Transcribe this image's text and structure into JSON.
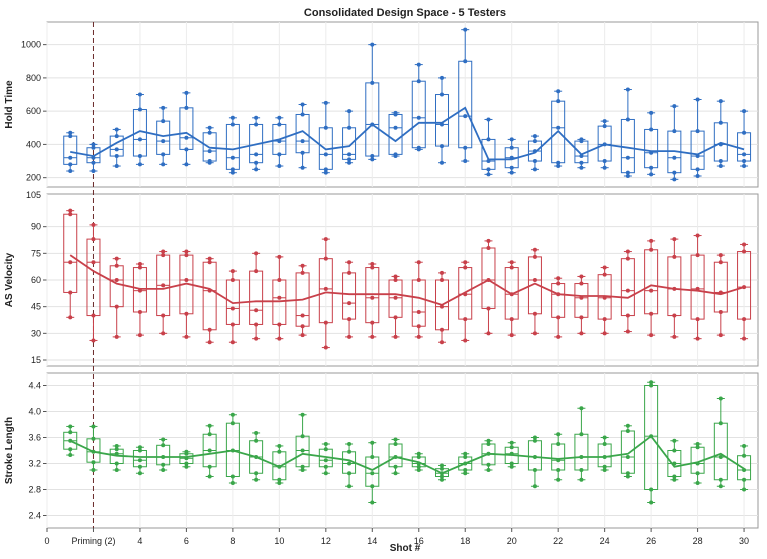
{
  "chart_data": {
    "type": "box",
    "title": "Consolidated Design Space - 5 Testers",
    "xlabel": "Shot #",
    "xlim": [
      0,
      30.6
    ],
    "x_ticks": [
      {
        "x": 0,
        "label": "0"
      },
      {
        "x": 2,
        "label": "Priming (2)"
      },
      {
        "x": 4,
        "label": "4"
      },
      {
        "x": 6,
        "label": "6"
      },
      {
        "x": 8,
        "label": "8"
      },
      {
        "x": 10,
        "label": "10"
      },
      {
        "x": 12,
        "label": "12"
      },
      {
        "x": 14,
        "label": "14"
      },
      {
        "x": 16,
        "label": "16"
      },
      {
        "x": 18,
        "label": "18"
      },
      {
        "x": 20,
        "label": "20"
      },
      {
        "x": 22,
        "label": "22"
      },
      {
        "x": 24,
        "label": "24"
      },
      {
        "x": 26,
        "label": "26"
      },
      {
        "x": 28,
        "label": "28"
      },
      {
        "x": 30,
        "label": "30"
      }
    ],
    "reference_line_x": 2,
    "shots": [
      1,
      2,
      3,
      4,
      5,
      6,
      7,
      8,
      9,
      10,
      11,
      12,
      13,
      14,
      15,
      16,
      17,
      18,
      19,
      20,
      21,
      22,
      23,
      24,
      25,
      26,
      27,
      28,
      29,
      30
    ],
    "panels": [
      {
        "ylabel": "Hold Time",
        "color": "#2f6ec2",
        "ylim": [
          180,
          1100
        ],
        "yticks": [
          200,
          400,
          600,
          800,
          1000
        ],
        "top_label": "",
        "mean": [
          355,
          330,
          410,
          480,
          450,
          470,
          380,
          370,
          400,
          430,
          480,
          370,
          390,
          520,
          420,
          530,
          530,
          620,
          310,
          310,
          350,
          480,
          340,
          400,
          380,
          360,
          360,
          340,
          410,
          370
        ],
        "boxes": [
          {
            "min": 240,
            "q1": 280,
            "med": 320,
            "q3": 450,
            "max": 470
          },
          {
            "min": 240,
            "q1": 290,
            "med": 320,
            "q3": 380,
            "max": 400
          },
          {
            "min": 270,
            "q1": 330,
            "med": 370,
            "q3": 450,
            "max": 490
          },
          {
            "min": 280,
            "q1": 330,
            "med": 430,
            "q3": 610,
            "max": 700
          },
          {
            "min": 280,
            "q1": 340,
            "med": 420,
            "q3": 540,
            "max": 620
          },
          {
            "min": 280,
            "q1": 370,
            "med": 440,
            "q3": 620,
            "max": 710
          },
          {
            "min": 290,
            "q1": 300,
            "med": 360,
            "q3": 470,
            "max": 500
          },
          {
            "min": 230,
            "q1": 250,
            "med": 320,
            "q3": 520,
            "max": 560
          },
          {
            "min": 250,
            "q1": 290,
            "med": 340,
            "q3": 520,
            "max": 560
          },
          {
            "min": 270,
            "q1": 340,
            "med": 420,
            "q3": 520,
            "max": 560
          },
          {
            "min": 260,
            "q1": 350,
            "med": 420,
            "q3": 580,
            "max": 640
          },
          {
            "min": 230,
            "q1": 250,
            "med": 340,
            "q3": 500,
            "max": 650
          },
          {
            "min": 290,
            "q1": 310,
            "med": 340,
            "q3": 500,
            "max": 600
          },
          {
            "min": 310,
            "q1": 330,
            "med": 520,
            "q3": 770,
            "max": 1000
          },
          {
            "min": 330,
            "q1": 340,
            "med": 500,
            "q3": 580,
            "max": 590
          },
          {
            "min": 370,
            "q1": 380,
            "med": 560,
            "q3": 780,
            "max": 880
          },
          {
            "min": 290,
            "q1": 390,
            "med": 520,
            "q3": 700,
            "max": 800
          },
          {
            "min": 300,
            "q1": 380,
            "med": 570,
            "q3": 900,
            "max": 1090
          },
          {
            "min": 220,
            "q1": 250,
            "med": 300,
            "q3": 430,
            "max": 550
          },
          {
            "min": 230,
            "q1": 260,
            "med": 320,
            "q3": 380,
            "max": 430
          },
          {
            "min": 250,
            "q1": 300,
            "med": 360,
            "q3": 420,
            "max": 450
          },
          {
            "min": 270,
            "q1": 290,
            "med": 500,
            "q3": 660,
            "max": 720
          },
          {
            "min": 260,
            "q1": 290,
            "med": 330,
            "q3": 420,
            "max": 430
          },
          {
            "min": 260,
            "q1": 300,
            "med": 400,
            "q3": 510,
            "max": 540
          },
          {
            "min": 210,
            "q1": 230,
            "med": 320,
            "q3": 550,
            "max": 730
          },
          {
            "min": 220,
            "q1": 260,
            "med": 350,
            "q3": 490,
            "max": 590
          },
          {
            "min": 190,
            "q1": 230,
            "med": 320,
            "q3": 480,
            "max": 630
          },
          {
            "min": 210,
            "q1": 250,
            "med": 330,
            "q3": 480,
            "max": 670
          },
          {
            "min": 270,
            "q1": 300,
            "med": 400,
            "q3": 530,
            "max": 660
          },
          {
            "min": 270,
            "q1": 300,
            "med": 340,
            "q3": 470,
            "max": 600
          }
        ]
      },
      {
        "ylabel": "AS Velocity",
        "color": "#c8404a",
        "ylim": [
          15,
          105
        ],
        "yticks": [
          15,
          30,
          45,
          60,
          75,
          90
        ],
        "top_label": "105",
        "mean": [
          74,
          65,
          58,
          55,
          55,
          58,
          55,
          47,
          48,
          48,
          49,
          53,
          52,
          52,
          52,
          50,
          46,
          53,
          60,
          52,
          58,
          52,
          51,
          51,
          50,
          57,
          55,
          54,
          52,
          56
        ],
        "boxes": [
          {
            "min": 39,
            "q1": 53,
            "med": 70,
            "q3": 97,
            "max": 99
          },
          {
            "min": 26,
            "q1": 40,
            "med": 70,
            "q3": 83,
            "max": 91
          },
          {
            "min": 28,
            "q1": 45,
            "med": 60,
            "q3": 68,
            "max": 72
          },
          {
            "min": 29,
            "q1": 42,
            "med": 54,
            "q3": 67,
            "max": 69
          },
          {
            "min": 30,
            "q1": 40,
            "med": 57,
            "q3": 74,
            "max": 76
          },
          {
            "min": 28,
            "q1": 41,
            "med": 60,
            "q3": 74,
            "max": 76
          },
          {
            "min": 25,
            "q1": 32,
            "med": 54,
            "q3": 70,
            "max": 72
          },
          {
            "min": 25,
            "q1": 35,
            "med": 44,
            "q3": 60,
            "max": 65
          },
          {
            "min": 27,
            "q1": 35,
            "med": 43,
            "q3": 65,
            "max": 75
          },
          {
            "min": 27,
            "q1": 35,
            "med": 50,
            "q3": 60,
            "max": 73
          },
          {
            "min": 29,
            "q1": 34,
            "med": 40,
            "q3": 64,
            "max": 68
          },
          {
            "min": 22,
            "q1": 36,
            "med": 55,
            "q3": 72,
            "max": 83
          },
          {
            "min": 28,
            "q1": 38,
            "med": 47,
            "q3": 64,
            "max": 70
          },
          {
            "min": 28,
            "q1": 36,
            "med": 50,
            "q3": 67,
            "max": 69
          },
          {
            "min": 28,
            "q1": 39,
            "med": 50,
            "q3": 60,
            "max": 62
          },
          {
            "min": 28,
            "q1": 34,
            "med": 42,
            "q3": 60,
            "max": 70
          },
          {
            "min": 25,
            "q1": 32,
            "med": 45,
            "q3": 60,
            "max": 64
          },
          {
            "min": 26,
            "q1": 38,
            "med": 52,
            "q3": 67,
            "max": 70
          },
          {
            "min": 30,
            "q1": 44,
            "med": 60,
            "q3": 78,
            "max": 82
          },
          {
            "min": 29,
            "q1": 38,
            "med": 52,
            "q3": 67,
            "max": 70
          },
          {
            "min": 30,
            "q1": 41,
            "med": 60,
            "q3": 73,
            "max": 77
          },
          {
            "min": 28,
            "q1": 39,
            "med": 52,
            "q3": 58,
            "max": 61
          },
          {
            "min": 30,
            "q1": 39,
            "med": 50,
            "q3": 58,
            "max": 62
          },
          {
            "min": 30,
            "q1": 38,
            "med": 50,
            "q3": 63,
            "max": 67
          },
          {
            "min": 31,
            "q1": 40,
            "med": 54,
            "q3": 72,
            "max": 76
          },
          {
            "min": 29,
            "q1": 41,
            "med": 54,
            "q3": 77,
            "max": 82
          },
          {
            "min": 28,
            "q1": 40,
            "med": 55,
            "q3": 73,
            "max": 83
          },
          {
            "min": 27,
            "q1": 38,
            "med": 55,
            "q3": 74,
            "max": 85
          },
          {
            "min": 29,
            "q1": 42,
            "med": 53,
            "q3": 70,
            "max": 74
          },
          {
            "min": 27,
            "q1": 38,
            "med": 56,
            "q3": 76,
            "max": 80
          }
        ]
      },
      {
        "ylabel": "Stroke Length",
        "color": "#3aa64a",
        "ylim": [
          2.3,
          4.5
        ],
        "yticks": [
          2.4,
          2.8,
          3.2,
          3.6,
          4.0,
          4.4
        ],
        "top_label": "",
        "mean": [
          3.55,
          3.38,
          3.32,
          3.3,
          3.3,
          3.3,
          3.35,
          3.4,
          3.3,
          3.15,
          3.35,
          3.3,
          3.25,
          3.1,
          3.3,
          3.22,
          3.05,
          3.2,
          3.35,
          3.33,
          3.3,
          3.27,
          3.3,
          3.3,
          3.35,
          3.62,
          3.15,
          3.22,
          3.35,
          3.12
        ],
        "boxes": [
          {
            "min": 3.33,
            "q1": 3.42,
            "med": 3.55,
            "q3": 3.68,
            "max": 3.77
          },
          {
            "min": 3.1,
            "q1": 3.22,
            "med": 3.38,
            "q3": 3.58,
            "max": 3.77
          },
          {
            "min": 3.1,
            "q1": 3.2,
            "med": 3.35,
            "q3": 3.42,
            "max": 3.47
          },
          {
            "min": 3.05,
            "q1": 3.15,
            "med": 3.25,
            "q3": 3.4,
            "max": 3.45
          },
          {
            "min": 3.1,
            "q1": 3.18,
            "med": 3.3,
            "q3": 3.48,
            "max": 3.57
          },
          {
            "min": 3.15,
            "q1": 3.2,
            "med": 3.28,
            "q3": 3.35,
            "max": 3.38
          },
          {
            "min": 3.0,
            "q1": 3.15,
            "med": 3.4,
            "q3": 3.65,
            "max": 3.78
          },
          {
            "min": 2.9,
            "q1": 3.0,
            "med": 3.4,
            "q3": 3.82,
            "max": 3.95
          },
          {
            "min": 2.95,
            "q1": 3.05,
            "med": 3.3,
            "q3": 3.55,
            "max": 3.67
          },
          {
            "min": 2.9,
            "q1": 2.95,
            "med": 3.15,
            "q3": 3.38,
            "max": 3.47
          },
          {
            "min": 3.1,
            "q1": 3.15,
            "med": 3.4,
            "q3": 3.62,
            "max": 3.95
          },
          {
            "min": 3.05,
            "q1": 3.15,
            "med": 3.25,
            "q3": 3.42,
            "max": 3.5
          },
          {
            "min": 2.85,
            "q1": 3.05,
            "med": 3.2,
            "q3": 3.38,
            "max": 3.5
          },
          {
            "min": 2.6,
            "q1": 2.85,
            "med": 3.05,
            "q3": 3.3,
            "max": 3.52
          },
          {
            "min": 3.05,
            "q1": 3.15,
            "med": 3.3,
            "q3": 3.5,
            "max": 3.57
          },
          {
            "min": 3.1,
            "q1": 3.15,
            "med": 3.2,
            "q3": 3.3,
            "max": 3.35
          },
          {
            "min": 2.95,
            "q1": 3.0,
            "med": 3.05,
            "q3": 3.12,
            "max": 3.17
          },
          {
            "min": 3.05,
            "q1": 3.1,
            "med": 3.2,
            "q3": 3.3,
            "max": 3.35
          },
          {
            "min": 3.1,
            "q1": 3.18,
            "med": 3.35,
            "q3": 3.5,
            "max": 3.55
          },
          {
            "min": 3.15,
            "q1": 3.2,
            "med": 3.35,
            "q3": 3.45,
            "max": 3.52
          },
          {
            "min": 2.85,
            "q1": 3.1,
            "med": 3.3,
            "q3": 3.55,
            "max": 3.6
          },
          {
            "min": 2.95,
            "q1": 3.1,
            "med": 3.25,
            "q3": 3.5,
            "max": 3.65
          },
          {
            "min": 2.95,
            "q1": 3.1,
            "med": 3.3,
            "q3": 3.65,
            "max": 4.05
          },
          {
            "min": 3.1,
            "q1": 3.15,
            "med": 3.3,
            "q3": 3.5,
            "max": 3.6
          },
          {
            "min": 3.0,
            "q1": 3.05,
            "med": 3.3,
            "q3": 3.7,
            "max": 3.78
          },
          {
            "min": 2.6,
            "q1": 2.8,
            "med": 3.62,
            "q3": 4.4,
            "max": 4.45
          },
          {
            "min": 2.95,
            "q1": 3.0,
            "med": 3.2,
            "q3": 3.4,
            "max": 3.55
          },
          {
            "min": 2.9,
            "q1": 3.05,
            "med": 3.2,
            "q3": 3.45,
            "max": 3.5
          },
          {
            "min": 2.85,
            "q1": 2.95,
            "med": 3.3,
            "q3": 3.82,
            "max": 4.2
          },
          {
            "min": 2.8,
            "q1": 2.95,
            "med": 3.1,
            "q3": 3.32,
            "max": 3.47
          }
        ]
      }
    ]
  }
}
